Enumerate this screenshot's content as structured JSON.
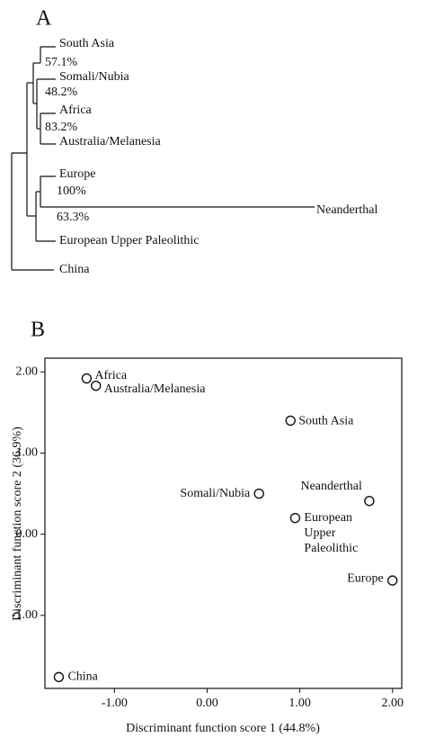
{
  "chart_data": [
    {
      "type": "dendrogram",
      "panel_label": "A",
      "leaves": [
        "South Asia",
        "Somali/Nubia",
        "Africa",
        "Australia/Melanesia",
        "Europe",
        "Neanderthal",
        "European Upper Paleolithic",
        "China"
      ],
      "support_labels": [
        "57.1%",
        "48.2%",
        "83.2%",
        "100%",
        "63.3%"
      ]
    },
    {
      "type": "scatter",
      "panel_label": "B",
      "x_label": "Discriminant function score 1 (44.8%)",
      "y_label": "Discriminant function score 2 (36.9%)",
      "point_labels": [
        "Africa",
        "Australia/Melanesia",
        "South Asia",
        "Somali/Nubia",
        "Neanderthal",
        [
          "European",
          "Upper",
          "Paleolithic"
        ],
        "Europe",
        "China"
      ],
      "x": [
        -1.3,
        -1.2,
        0.9,
        0.56,
        1.75,
        0.95,
        2.0,
        -1.6
      ],
      "values": [
        1.92,
        1.83,
        1.4,
        0.5,
        0.41,
        0.2,
        -0.57,
        -1.76
      ],
      "xlim": [
        -1.75,
        2.1
      ],
      "ylim": [
        -1.9,
        2.17
      ],
      "xticks": [
        {
          "value": -1,
          "label": "-1.00"
        },
        {
          "value": 0,
          "label": "0.00"
        },
        {
          "value": 1,
          "label": "1.00"
        },
        {
          "value": 2,
          "label": "2.00"
        }
      ],
      "yticks": [
        {
          "value": -1,
          "label": "-1.00"
        },
        {
          "value": 0,
          "label": "0.00"
        },
        {
          "value": 1,
          "label": "1.00"
        },
        {
          "value": 2,
          "label": "2.00"
        }
      ]
    }
  ]
}
